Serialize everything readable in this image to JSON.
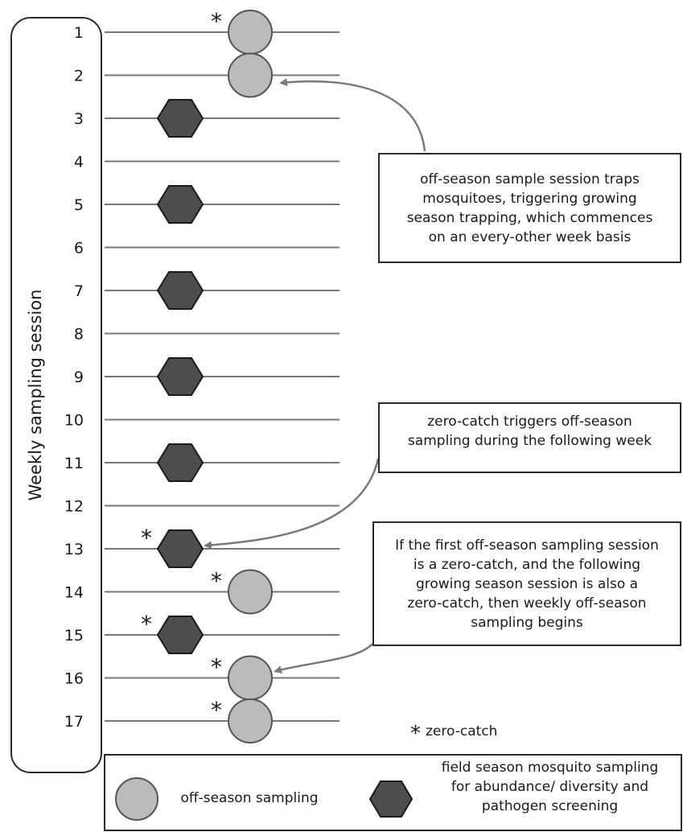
{
  "axis_title": "Weekly sampling session",
  "sessions": [
    {
      "label": "1",
      "marker": "circle",
      "zero_catch": true
    },
    {
      "label": "2",
      "marker": "circle",
      "zero_catch": false
    },
    {
      "label": "3",
      "marker": "hexagon",
      "zero_catch": false
    },
    {
      "label": "4",
      "marker": "none",
      "zero_catch": false
    },
    {
      "label": "5",
      "marker": "hexagon",
      "zero_catch": false
    },
    {
      "label": "6",
      "marker": "none",
      "zero_catch": false
    },
    {
      "label": "7",
      "marker": "hexagon",
      "zero_catch": false
    },
    {
      "label": "8",
      "marker": "none",
      "zero_catch": false
    },
    {
      "label": "9",
      "marker": "hexagon",
      "zero_catch": false
    },
    {
      "label": "10",
      "marker": "none",
      "zero_catch": false
    },
    {
      "label": "11",
      "marker": "hexagon",
      "zero_catch": false
    },
    {
      "label": "12",
      "marker": "none",
      "zero_catch": false
    },
    {
      "label": "13",
      "marker": "hexagon",
      "zero_catch": true
    },
    {
      "label": "14",
      "marker": "circle",
      "zero_catch": true
    },
    {
      "label": "15",
      "marker": "hexagon",
      "zero_catch": true
    },
    {
      "label": "16",
      "marker": "circle",
      "zero_catch": true
    },
    {
      "label": "17",
      "marker": "circle",
      "zero_catch": true
    }
  ],
  "callouts": [
    {
      "lines": [
        "off-season sample session traps",
        "mosquitoes, triggering growing",
        "season trapping, which commences",
        "on an every-other week basis"
      ],
      "points_to_session": "2"
    },
    {
      "lines": [
        "zero-catch triggers off-season",
        "sampling during the following week"
      ],
      "points_to_session": "13"
    },
    {
      "lines": [
        "If the first off-season sampling session",
        "is a  zero-catch, and the following",
        "growing season session is also a",
        "zero-catch, then weekly off-season",
        "sampling begins"
      ],
      "points_to_session": "16"
    }
  ],
  "zero_catch_key": {
    "symbol": "*",
    "label": "zero-catch"
  },
  "legend": {
    "off_season_label": "off-season sampling",
    "field_season_lines": [
      "field season mosquito sampling",
      "for abundance/ diversity and",
      "pathogen screening"
    ]
  },
  "colors": {
    "circle_fill": "#bbbbbb",
    "circle_stroke": "#555555",
    "hexagon_fill": "#4d4d4d",
    "hexagon_stroke": "#1a1a1a",
    "line": "#777777",
    "arrow": "#7a7a7a"
  }
}
